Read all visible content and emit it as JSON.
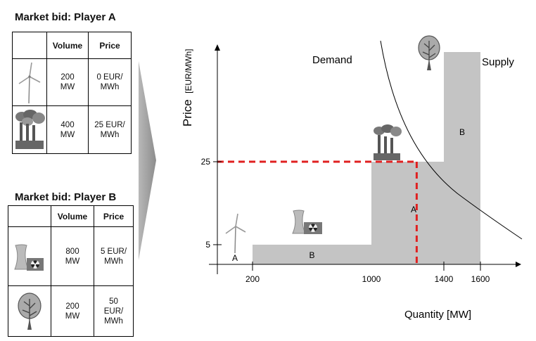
{
  "player_a": {
    "title": "Market bid: Player A",
    "headers": [
      "Volume",
      "Price"
    ],
    "rows": [
      {
        "icon": "wind-turbine-icon",
        "volume": "200\nMW",
        "price": "0 EUR/\nMWh"
      },
      {
        "icon": "coal-plant-icon",
        "volume": "400\nMW",
        "price": "25 EUR/\nMWh"
      }
    ]
  },
  "player_b": {
    "title": "Market bid: Player B",
    "headers": [
      "Volume",
      "Price"
    ],
    "rows": [
      {
        "icon": "nuclear-plant-icon",
        "volume": "800\nMW",
        "price": "5 EUR/\nMWh"
      },
      {
        "icon": "biomass-tree-icon",
        "volume": "200\nMW",
        "price": "50\nEUR/\nMWh"
      }
    ]
  },
  "chart_data": {
    "type": "area",
    "xlabel": "Quantity [MW]",
    "ylabel_main": "Price",
    "ylabel_unit": "[EUR/MWh]",
    "x_ticks": [
      200,
      1000,
      1400,
      1600
    ],
    "y_ticks": [
      5,
      25
    ],
    "supply_steps": [
      {
        "from": 0,
        "to": 200,
        "price": 0,
        "label": "A",
        "icon": "wind-turbine-icon"
      },
      {
        "from": 200,
        "to": 1000,
        "price": 5,
        "label": "B",
        "icon": "nuclear-plant-icon"
      },
      {
        "from": 1000,
        "to": 1400,
        "price": 25,
        "label": "A",
        "icon": "coal-plant-icon"
      },
      {
        "from": 1400,
        "to": 1600,
        "price": 50,
        "label": "B",
        "icon": "biomass-tree-icon"
      }
    ],
    "clearing": {
      "quantity": 1250,
      "price": 25
    },
    "curve_labels": {
      "demand": "Demand",
      "supply": "Supply"
    },
    "colors": {
      "steps": "#c4c4c4",
      "clearing_line": "#e02020",
      "demand": "#000000"
    }
  }
}
